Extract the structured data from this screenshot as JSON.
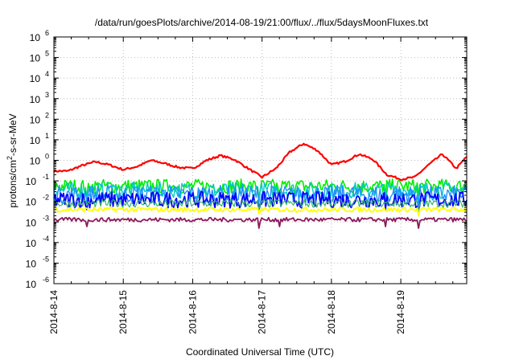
{
  "chart_data": {
    "type": "line",
    "title": "/data/run/goesPlots/archive/2014-08-19/21:00/flux/../flux/5daysMoonFluxes.txt",
    "xlabel": "Coordinated Universal Time (UTC)",
    "ylabel": {
      "base": "protons/cm",
      "sup": "2",
      "rest": "-s-sr-MeV"
    },
    "yscale": "log",
    "ylim_exp": [
      -6,
      6
    ],
    "ytick_exps": [
      "-6",
      "-5",
      "-4",
      "-3",
      "-2",
      "-1",
      "0",
      "1",
      "2",
      "3",
      "4",
      "5",
      "6"
    ],
    "ytick_base": "10",
    "xlim_days": [
      0,
      5.95
    ],
    "xtick_labels": [
      "2014-8-14",
      "2014-8-15",
      "2014-8-16",
      "2014-8-17",
      "2014-8-18",
      "2014-8-19"
    ],
    "grid": true,
    "series": [
      {
        "color": "#ff0000",
        "lw": 2.2,
        "jitter": 0.05,
        "x": [
          0,
          0.2,
          0.4,
          0.6,
          0.8,
          1.0,
          1.2,
          1.4,
          1.6,
          1.8,
          2.0,
          2.2,
          2.4,
          2.6,
          2.8,
          3.0,
          3.2,
          3.4,
          3.6,
          3.8,
          4.0,
          4.2,
          4.4,
          4.6,
          4.8,
          5.0,
          5.2,
          5.4,
          5.6,
          5.8,
          5.95
        ],
        "y": [
          0.3,
          0.3,
          0.55,
          0.85,
          0.6,
          0.35,
          0.5,
          1.0,
          0.7,
          0.45,
          0.4,
          1.0,
          1.7,
          1.1,
          0.4,
          0.15,
          0.4,
          2.5,
          6.5,
          3.0,
          0.6,
          0.9,
          2.0,
          1.1,
          0.2,
          0.12,
          0.15,
          0.6,
          2.0,
          0.4,
          1.5
        ]
      },
      {
        "color": "#00ee00",
        "lw": 1.6,
        "level": 0.055,
        "jitter": 0.35,
        "dips": [
          [
            0.47,
            0.02
          ],
          [
            2.95,
            0.015
          ],
          [
            3.25,
            0.02
          ],
          [
            4.78,
            0.02
          ],
          [
            5.25,
            0.02
          ]
        ]
      },
      {
        "color": "#00c8c8",
        "lw": 1.4,
        "level": 0.035,
        "jitter": 0.4,
        "dips": [
          [
            0.47,
            0.01
          ],
          [
            2.95,
            0.008
          ],
          [
            4.78,
            0.008
          ],
          [
            5.25,
            0.006
          ]
        ]
      },
      {
        "color": "#1e90ff",
        "lw": 1.4,
        "level": 0.022,
        "jitter": 0.45,
        "dips": [
          [
            0.47,
            0.008
          ],
          [
            2.95,
            0.006
          ],
          [
            4.78,
            0.006
          ],
          [
            5.25,
            0.005
          ]
        ]
      },
      {
        "color": "#0000ff",
        "lw": 1.8,
        "level": 0.012,
        "jitter": 0.4,
        "dips": [
          [
            0.47,
            0.004
          ],
          [
            2.95,
            0.004
          ],
          [
            4.78,
            0.004
          ],
          [
            5.25,
            0.003
          ]
        ]
      },
      {
        "color": "#3cb371",
        "lw": 1.2,
        "level": 0.008,
        "jitter": 0.2,
        "dips": [
          [
            2.95,
            0.004
          ],
          [
            5.25,
            0.003
          ]
        ]
      },
      {
        "color": "#ffff00",
        "lw": 1.8,
        "level": 0.004,
        "jitter": 0.12,
        "dips": [
          [
            2.95,
            0.0025
          ],
          [
            5.25,
            0.002
          ]
        ]
      },
      {
        "color": "#8b1a5a",
        "lw": 1.8,
        "level": 0.0013,
        "jitter": 0.1,
        "dips": [
          [
            0.47,
            0.0006
          ],
          [
            2.95,
            0.0005
          ],
          [
            3.25,
            0.0006
          ],
          [
            4.78,
            0.0006
          ],
          [
            5.25,
            0.0005
          ]
        ]
      }
    ]
  }
}
